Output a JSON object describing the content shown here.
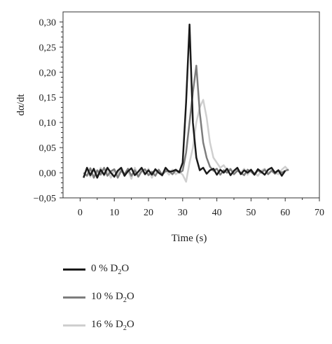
{
  "chart_data": {
    "type": "line",
    "xlabel": "Time (s)",
    "ylabel": "dα/dt",
    "xlim": [
      -5,
      70
    ],
    "ylim": [
      -0.05,
      0.32
    ],
    "xticks": [
      "0",
      "10",
      "20",
      "30",
      "40",
      "50",
      "60",
      "70"
    ],
    "yticks": [
      "−0,05",
      "0,00",
      "0,05",
      "0,10",
      "0,15",
      "0,20",
      "0,25",
      "0,30"
    ],
    "legend_placement": "below",
    "series": [
      {
        "name": "0 % D2O",
        "label_main": "0 % D",
        "label_sub": "2",
        "label_end": "O",
        "color": "#1a1a1a",
        "points": [
          [
            1,
            -0.01
          ],
          [
            2,
            0.01
          ],
          [
            3,
            -0.005
          ],
          [
            4,
            0.008
          ],
          [
            5,
            -0.01
          ],
          [
            6,
            0.006
          ],
          [
            7,
            -0.004
          ],
          [
            8,
            0.01
          ],
          [
            9,
            0.0
          ],
          [
            10,
            -0.008
          ],
          [
            11,
            0.004
          ],
          [
            12,
            0.01
          ],
          [
            13,
            -0.006
          ],
          [
            14,
            0.003
          ],
          [
            15,
            0.009
          ],
          [
            16,
            -0.005
          ],
          [
            17,
            0.002
          ],
          [
            18,
            0.01
          ],
          [
            19,
            -0.003
          ],
          [
            20,
            0.005
          ],
          [
            21,
            -0.004
          ],
          [
            22,
            0.007
          ],
          [
            23,
            0.0
          ],
          [
            24,
            -0.005
          ],
          [
            25,
            0.01
          ],
          [
            26,
            0.002
          ],
          [
            27,
            0.003
          ],
          [
            28,
            0.006
          ],
          [
            29,
            0.001
          ],
          [
            30,
            0.02
          ],
          [
            31,
            0.14
          ],
          [
            32,
            0.295
          ],
          [
            33,
            0.1
          ],
          [
            34,
            0.03
          ],
          [
            35,
            0.005
          ],
          [
            36,
            0.01
          ],
          [
            37,
            -0.002
          ],
          [
            38,
            0.005
          ],
          [
            39,
            0.008
          ],
          [
            40,
            -0.004
          ],
          [
            41,
            0.006
          ],
          [
            42,
            0.0
          ],
          [
            43,
            0.008
          ],
          [
            44,
            -0.005
          ],
          [
            45,
            0.004
          ],
          [
            46,
            0.01
          ],
          [
            47,
            -0.003
          ],
          [
            48,
            0.005
          ],
          [
            49,
            0.0
          ],
          [
            50,
            0.006
          ],
          [
            51,
            -0.004
          ],
          [
            52,
            0.007
          ],
          [
            53,
            0.002
          ],
          [
            54,
            -0.004
          ],
          [
            55,
            0.006
          ],
          [
            56,
            0.01
          ],
          [
            57,
            0.0
          ],
          [
            58,
            0.005
          ],
          [
            59,
            -0.006
          ],
          [
            60,
            0.004
          ]
        ]
      },
      {
        "name": "10 % D2O",
        "label_main": "10 % D",
        "label_sub": "2",
        "label_end": "O",
        "color": "#7d7d7d",
        "points": [
          [
            1,
            0.0
          ],
          [
            2,
            -0.006
          ],
          [
            3,
            0.009
          ],
          [
            4,
            -0.01
          ],
          [
            5,
            0.005
          ],
          [
            6,
            -0.004
          ],
          [
            7,
            0.01
          ],
          [
            8,
            -0.006
          ],
          [
            9,
            0.003
          ],
          [
            10,
            0.007
          ],
          [
            11,
            -0.01
          ],
          [
            12,
            0.004
          ],
          [
            13,
            -0.003
          ],
          [
            14,
            0.008
          ],
          [
            15,
            -0.006
          ],
          [
            16,
            0.005
          ],
          [
            17,
            -0.008
          ],
          [
            18,
            0.003
          ],
          [
            19,
            0.007
          ],
          [
            20,
            -0.005
          ],
          [
            21,
            0.002
          ],
          [
            22,
            -0.006
          ],
          [
            23,
            0.006
          ],
          [
            24,
            -0.004
          ],
          [
            25,
            0.003
          ],
          [
            26,
            0.004
          ],
          [
            27,
            -0.003
          ],
          [
            28,
            0.005
          ],
          [
            29,
            0.0
          ],
          [
            30,
            0.004
          ],
          [
            31,
            0.04
          ],
          [
            32,
            0.1
          ],
          [
            33,
            0.16
          ],
          [
            34,
            0.213
          ],
          [
            35,
            0.12
          ],
          [
            36,
            0.06
          ],
          [
            37,
            0.03
          ],
          [
            38,
            0.012
          ],
          [
            39,
            0.004
          ],
          [
            40,
            0.008
          ],
          [
            41,
            -0.004
          ],
          [
            42,
            0.005
          ],
          [
            43,
            0.0
          ],
          [
            44,
            0.007
          ],
          [
            45,
            -0.003
          ],
          [
            46,
            0.004
          ],
          [
            47,
            0.0
          ],
          [
            48,
            -0.005
          ],
          [
            49,
            0.006
          ],
          [
            50,
            0.002
          ],
          [
            51,
            -0.004
          ],
          [
            52,
            0.005
          ],
          [
            53,
            0.0
          ],
          [
            54,
            0.006
          ],
          [
            55,
            -0.003
          ],
          [
            56,
            0.004
          ],
          [
            57,
            -0.002
          ],
          [
            58,
            0.005
          ],
          [
            59,
            0.0
          ],
          [
            60,
            0.004
          ],
          [
            61,
            0.006
          ]
        ]
      },
      {
        "name": "16 % D2O",
        "label_main": "16 % D",
        "label_sub": "2",
        "label_end": "O",
        "color": "#cfcfcf",
        "points": [
          [
            2,
            0.005
          ],
          [
            3,
            -0.008
          ],
          [
            4,
            0.006
          ],
          [
            5,
            -0.004
          ],
          [
            6,
            0.01
          ],
          [
            7,
            -0.006
          ],
          [
            8,
            0.004
          ],
          [
            9,
            -0.01
          ],
          [
            10,
            0.006
          ],
          [
            11,
            -0.002
          ],
          [
            12,
            0.008
          ],
          [
            13,
            -0.007
          ],
          [
            14,
            0.004
          ],
          [
            15,
            -0.012
          ],
          [
            16,
            0.01
          ],
          [
            17,
            -0.006
          ],
          [
            18,
            0.005
          ],
          [
            19,
            -0.004
          ],
          [
            20,
            0.008
          ],
          [
            21,
            -0.01
          ],
          [
            22,
            0.004
          ],
          [
            23,
            0.0
          ],
          [
            24,
            -0.006
          ],
          [
            25,
            0.005
          ],
          [
            26,
            -0.004
          ],
          [
            27,
            0.006
          ],
          [
            28,
            -0.003
          ],
          [
            29,
            0.002
          ],
          [
            30,
            -0.004
          ],
          [
            31,
            -0.018
          ],
          [
            32,
            0.02
          ],
          [
            33,
            0.05
          ],
          [
            34,
            0.1
          ],
          [
            35,
            0.13
          ],
          [
            36,
            0.145
          ],
          [
            37,
            0.11
          ],
          [
            38,
            0.06
          ],
          [
            39,
            0.03
          ],
          [
            40,
            0.02
          ],
          [
            41,
            0.01
          ],
          [
            42,
            0.015
          ],
          [
            43,
            0.005
          ],
          [
            44,
            0.008
          ],
          [
            45,
            -0.002
          ],
          [
            46,
            0.006
          ],
          [
            47,
            0.0
          ],
          [
            48,
            0.008
          ],
          [
            49,
            -0.004
          ],
          [
            50,
            0.005
          ],
          [
            51,
            0.0
          ],
          [
            52,
            -0.006
          ],
          [
            53,
            0.004
          ],
          [
            54,
            0.008
          ],
          [
            55,
            -0.002
          ],
          [
            56,
            0.005
          ],
          [
            57,
            0.0
          ],
          [
            58,
            -0.003
          ],
          [
            59,
            0.006
          ],
          [
            60,
            0.012
          ],
          [
            61,
            0.004
          ]
        ]
      }
    ]
  }
}
